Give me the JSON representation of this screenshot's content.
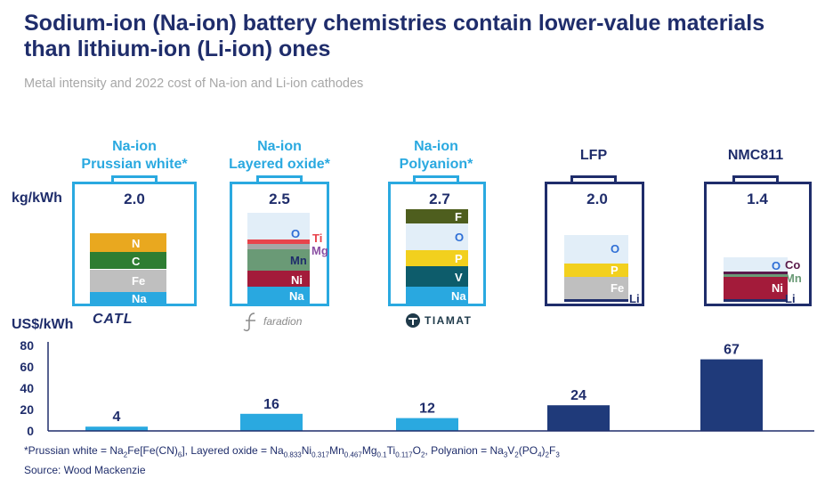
{
  "title": "Sodium-ion (Na-ion) battery chemistries contain lower-value materials than lithium-ion (Li-ion) ones",
  "subtitle": "Metal intensity and 2022 cost of Na-ion and Li-ion cathodes",
  "kg_unit": "kg/kWh",
  "usd_unit": "US$/kWh",
  "colors": {
    "navy": "#1f2d6b",
    "light_blue": "#2aa9e0"
  },
  "chemistries": [
    {
      "name_line1": "Na-ion",
      "name_line2": "Prussian white*",
      "kg": "2.0",
      "layers": [
        {
          "element": "Na",
          "color": "#29a8e0",
          "text_color": "#ffffff"
        },
        {
          "element": "Fe",
          "color": "#bfbfbf",
          "text_color": "#ffffff"
        },
        {
          "element": "C",
          "color": "#2e7d32",
          "text_color": "#ffffff"
        },
        {
          "element": "N",
          "color": "#e9a81f",
          "text_color": "#ffffff"
        }
      ],
      "logo": "CATL"
    },
    {
      "name_line1": "Na-ion",
      "name_line2": "Layered oxide*",
      "kg": "2.5",
      "layers": [
        {
          "element": "Na",
          "color": "#29a8e0",
          "text_color": "#ffffff"
        },
        {
          "element": "Ni",
          "color": "#a31b3a",
          "text_color": "#ffffff"
        },
        {
          "element": "Mn",
          "color": "#6a9a76",
          "text_color": "#1f2d6b"
        },
        {
          "element": "Mg",
          "color": "#a6a6a6",
          "text_color": "#8a4fa3"
        },
        {
          "element": "Ti",
          "color": "#e8434b",
          "text_color": "#e8434b"
        },
        {
          "element": "O",
          "color": "#e2eef8",
          "text_color": "#2f6fd6"
        }
      ],
      "logo": "faradion"
    },
    {
      "name_line1": "Na-ion",
      "name_line2": "Polyanion*",
      "kg": "2.7",
      "layers": [
        {
          "element": "Na",
          "color": "#29a8e0",
          "text_color": "#ffffff"
        },
        {
          "element": "V",
          "color": "#0d5c6b",
          "text_color": "#ffffff"
        },
        {
          "element": "P",
          "color": "#f2d01e",
          "text_color": "#ffffff"
        },
        {
          "element": "O",
          "color": "#e2eef8",
          "text_color": "#2f6fd6"
        },
        {
          "element": "F",
          "color": "#4e5e1e",
          "text_color": "#ffffff"
        }
      ],
      "logo": "TIAMAT"
    },
    {
      "name_line1": "",
      "name_line2": "LFP",
      "kg": "2.0",
      "layers": [
        {
          "element": "Li",
          "color": "#1f2d6b",
          "text_color": "#1f2d6b"
        },
        {
          "element": "Fe",
          "color": "#bfbfbf",
          "text_color": "#ffffff"
        },
        {
          "element": "P",
          "color": "#f2d01e",
          "text_color": "#ffffff"
        },
        {
          "element": "O",
          "color": "#e2eef8",
          "text_color": "#2f6fd6"
        }
      ],
      "logo": ""
    },
    {
      "name_line1": "",
      "name_line2": "NMC811",
      "kg": "1.4",
      "layers": [
        {
          "element": "Li",
          "color": "#1f2d6b",
          "text_color": "#1f2d6b"
        },
        {
          "element": "Ni",
          "color": "#a31b3a",
          "text_color": "#ffffff"
        },
        {
          "element": "Mn",
          "color": "#6a9a76",
          "text_color": "#6a9a76"
        },
        {
          "element": "Co",
          "color": "#5a1a4a",
          "text_color": "#5a1a4a"
        },
        {
          "element": "O",
          "color": "#e2eef8",
          "text_color": "#2f6fd6"
        }
      ],
      "logo": ""
    }
  ],
  "chart_data": {
    "type": "bar",
    "categories": [
      "Na-ion Prussian white*",
      "Na-ion Layered oxide*",
      "Na-ion Polyanion*",
      "LFP",
      "NMC811"
    ],
    "values": [
      4,
      16,
      12,
      24,
      67
    ],
    "bar_colors": [
      "#2aa9e0",
      "#2aa9e0",
      "#2aa9e0",
      "#1f3a7a",
      "#1f3a7a"
    ],
    "ylabel": "US$/kWh",
    "ylim": [
      0,
      80
    ],
    "yticks": [
      0,
      20,
      40,
      60,
      80
    ]
  },
  "footnote": {
    "prefix": "*Prussian white = Na",
    "p1": "2",
    "p2": "Fe[Fe(CN)",
    "p3": "6",
    "p4": "], Layered oxide = Na",
    "p5": "0.833",
    "p6": "Ni",
    "p7": "0.317",
    "p8": "Mn",
    "p9": "0.467",
    "p10": "Mg",
    "p11": "0.1",
    "p12": "Ti",
    "p13": "0.117",
    "p14": "O",
    "p15": "2",
    "p16": ", Polyanion = Na",
    "p17": "3",
    "p18": "V",
    "p19": "2",
    "p20": "(PO",
    "p21": "4",
    "p22": ")",
    "p23": "2",
    "p24": "F",
    "p25": "3"
  },
  "source": "Source: Wood Mackenzie"
}
